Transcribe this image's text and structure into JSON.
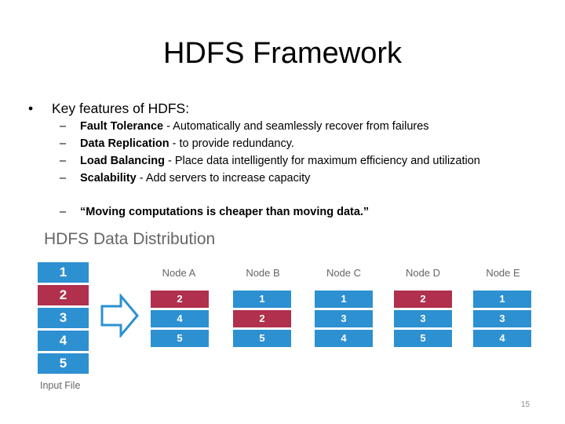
{
  "title": "HDFS Framework",
  "bullet": {
    "marker": "•",
    "text": "Key features of HDFS:",
    "items": [
      {
        "dash": "–",
        "term": "Fault Tolerance",
        "desc": " - Automatically and seamlessly recover from failures"
      },
      {
        "dash": "–",
        "term": "Data Replication",
        "desc": " - to provide redundancy."
      },
      {
        "dash": "–",
        "term": "Load Balancing",
        "desc": " - Place data intelligently for maximum efficiency and utilization"
      },
      {
        "dash": "–",
        "term": "Scalability",
        "desc": " - Add servers to increase capacity"
      }
    ],
    "quote": {
      "dash": "–",
      "text": "“Moving computations is cheaper than moving data.”"
    }
  },
  "diagram": {
    "title": "HDFS Data Distribution",
    "input_label": "Input File",
    "input_blocks": [
      {
        "label": "1",
        "color": "#2d90d1"
      },
      {
        "label": "2",
        "color": "#b0304d"
      },
      {
        "label": "3",
        "color": "#2d90d1"
      },
      {
        "label": "4",
        "color": "#2d90d1"
      },
      {
        "label": "5",
        "color": "#2d90d1"
      }
    ],
    "nodes": [
      {
        "name": "Node A",
        "blocks": [
          {
            "label": "2",
            "color": "#b0304d"
          },
          {
            "label": "4",
            "color": "#2d90d1"
          },
          {
            "label": "5",
            "color": "#2d90d1"
          }
        ]
      },
      {
        "name": "Node B",
        "blocks": [
          {
            "label": "1",
            "color": "#2d90d1"
          },
          {
            "label": "2",
            "color": "#b0304d"
          },
          {
            "label": "5",
            "color": "#2d90d1"
          }
        ]
      },
      {
        "name": "Node C",
        "blocks": [
          {
            "label": "1",
            "color": "#2d90d1"
          },
          {
            "label": "3",
            "color": "#2d90d1"
          },
          {
            "label": "4",
            "color": "#2d90d1"
          }
        ]
      },
      {
        "name": "Node D",
        "blocks": [
          {
            "label": "2",
            "color": "#b0304d"
          },
          {
            "label": "3",
            "color": "#2d90d1"
          },
          {
            "label": "5",
            "color": "#2d90d1"
          }
        ]
      },
      {
        "name": "Node E",
        "blocks": [
          {
            "label": "1",
            "color": "#2d90d1"
          },
          {
            "label": "3",
            "color": "#2d90d1"
          },
          {
            "label": "4",
            "color": "#2d90d1"
          }
        ]
      }
    ],
    "arrow_icon": "right-arrow-icon"
  },
  "page_number": "15"
}
